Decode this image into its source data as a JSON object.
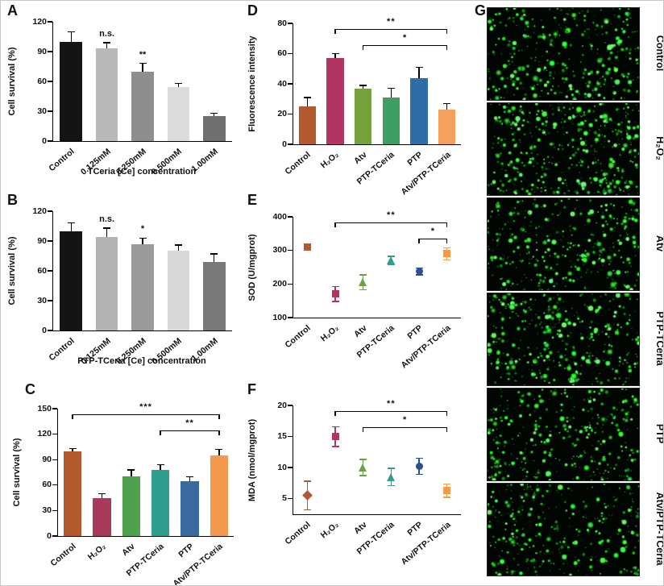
{
  "panels": {
    "A": {
      "letter": "A"
    },
    "B": {
      "letter": "B"
    },
    "C": {
      "letter": "C"
    },
    "D": {
      "letter": "D"
    },
    "E": {
      "letter": "E"
    },
    "F": {
      "letter": "F"
    },
    "G": {
      "letter": "G",
      "images": [
        {
          "label": "Control",
          "dots": 360
        },
        {
          "label": "H₂O₂",
          "dots": 460
        },
        {
          "label": "Atv",
          "dots": 350
        },
        {
          "label": "PTP-TCeria",
          "dots": 380
        },
        {
          "label": "PTP",
          "dots": 340
        },
        {
          "label": "Atv/PTP-TCeria",
          "dots": 300
        }
      ]
    }
  },
  "chart_data": [
    {
      "panel": "A",
      "type": "bar",
      "ylabel": "Cell survival (%)",
      "xlabel": "TCeria [Ce] concentration",
      "ylim": [
        0,
        120
      ],
      "yticks": [
        0,
        30,
        60,
        90,
        120
      ],
      "categories": [
        "Control",
        "0.125mM",
        "0.250mM",
        "0.500mM",
        "1.00mM"
      ],
      "values": [
        100,
        93,
        70,
        54,
        25
      ],
      "errors": [
        10,
        6,
        8,
        4,
        3
      ],
      "colors": [
        "#141414",
        "#b9b9b9",
        "#8e8e8e",
        "#dcdcdc",
        "#6f6f6f"
      ],
      "annotations": [
        {
          "index": 1,
          "text": "n.s."
        },
        {
          "index": 2,
          "text": "**"
        }
      ]
    },
    {
      "panel": "B",
      "type": "bar",
      "ylabel": "Cell survival (%)",
      "xlabel": "PTP-TCeria [Ce] concentration",
      "ylim": [
        0,
        120
      ],
      "yticks": [
        0,
        30,
        60,
        90,
        120
      ],
      "categories": [
        "Control",
        "0.125mM",
        "0.250mM",
        "0.500mM",
        "1.00mM"
      ],
      "values": [
        100,
        94,
        87,
        80,
        69
      ],
      "errors": [
        8,
        9,
        6,
        6,
        8
      ],
      "colors": [
        "#141414",
        "#b3b3b3",
        "#9a9a9a",
        "#d8d8d8",
        "#787878"
      ],
      "annotations": [
        {
          "index": 1,
          "text": "n.s."
        },
        {
          "index": 2,
          "text": "*"
        }
      ]
    },
    {
      "panel": "C",
      "type": "bar",
      "ylabel": "Cell survival (%)",
      "xlabel": "",
      "ylim": [
        0,
        150
      ],
      "yticks": [
        0,
        30,
        60,
        90,
        120,
        150
      ],
      "categories": [
        "Control",
        "H₂O₂",
        "Atv",
        "PTP-TCeria",
        "PTP",
        "Atv/PTP-TCeria"
      ],
      "values": [
        100,
        45,
        70,
        78,
        65,
        95
      ],
      "errors": [
        3,
        5,
        8,
        6,
        5,
        7
      ],
      "colors": [
        "#b2592e",
        "#a83a5a",
        "#4ea24e",
        "#2f9e8e",
        "#3a6aa0",
        "#f49a4f"
      ],
      "brackets": [
        {
          "from": 0,
          "to": 5,
          "text": "***"
        },
        {
          "from": 3,
          "to": 5,
          "text": "**"
        }
      ]
    },
    {
      "panel": "D",
      "type": "bar",
      "ylabel": "Fluorescence intensity",
      "xlabel": "",
      "ylim": [
        0,
        80
      ],
      "yticks": [
        0,
        20,
        40,
        60,
        80
      ],
      "categories": [
        "Control",
        "H₂O₂",
        "Atv",
        "PTP-TCeria",
        "PTP",
        "Atv/PTP-TCeria"
      ],
      "values": [
        25,
        57,
        37,
        31,
        44,
        23
      ],
      "errors": [
        6,
        3,
        2,
        6,
        7,
        4
      ],
      "colors": [
        "#b2592e",
        "#b03563",
        "#76a23c",
        "#3f9e62",
        "#2f6da8",
        "#f5a05c"
      ],
      "brackets": [
        {
          "from": 1,
          "to": 5,
          "text": "**"
        },
        {
          "from": 2,
          "to": 5,
          "text": "*"
        }
      ]
    },
    {
      "panel": "E",
      "type": "scatter",
      "ylabel": "SOD (U/mgprot)",
      "xlabel": "",
      "ylim": [
        100,
        400
      ],
      "yticks": [
        100,
        200,
        300,
        400
      ],
      "categories": [
        "Control",
        "H₂O₂",
        "Atv",
        "PTP-TCeria",
        "PTP",
        "Atv/PTP-TCeria"
      ],
      "values": [
        310,
        170,
        205,
        270,
        237,
        290
      ],
      "errors": [
        10,
        22,
        22,
        12,
        10,
        18
      ],
      "markers": [
        "square",
        "square",
        "triangle",
        "triangle",
        "circle",
        "square"
      ],
      "colors": [
        "#b2592e",
        "#b03563",
        "#6aa345",
        "#2f9e8e",
        "#2d4f8e",
        "#f49a4f"
      ],
      "brackets": [
        {
          "from": 1,
          "to": 5,
          "text": "**"
        },
        {
          "from": 4,
          "to": 5,
          "text": "*"
        }
      ]
    },
    {
      "panel": "F",
      "type": "scatter",
      "ylabel": "MDA (nmol/mgprot)",
      "xlabel": "",
      "ylim": [
        2.5,
        20
      ],
      "yticks": [
        5,
        10,
        15,
        20
      ],
      "categories": [
        "Control",
        "H₂O₂",
        "Atv",
        "PTP-TCeria",
        "PTP",
        "Atv/PTP-TCeria"
      ],
      "values": [
        5.5,
        15,
        10,
        8.5,
        10.2,
        6.3
      ],
      "errors": [
        2.3,
        1.6,
        1.3,
        1.4,
        1.3,
        1.1
      ],
      "markers": [
        "diamond",
        "square",
        "triangle",
        "triangle",
        "circle",
        "square"
      ],
      "colors": [
        "#b2592e",
        "#b03563",
        "#6aa345",
        "#2f9e8e",
        "#2d4f8e",
        "#f49a4f"
      ],
      "brackets": [
        {
          "from": 1,
          "to": 5,
          "text": "**"
        },
        {
          "from": 2,
          "to": 5,
          "text": "*"
        }
      ]
    }
  ]
}
